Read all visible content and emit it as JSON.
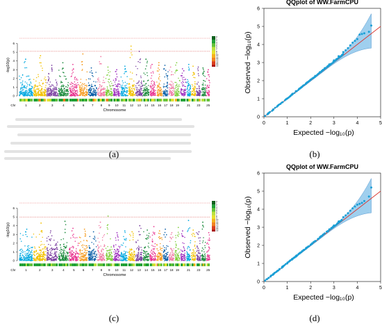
{
  "panel_labels": [
    "(a)",
    "(b)",
    "(c)",
    "(d)"
  ],
  "chart_data": [
    {
      "panel": "(a)",
      "type": "scatter",
      "subtype": "manhattan",
      "xlabel": "Chromosome",
      "ylabel": "-log10(p)",
      "y_tick_labels": [
        "0",
        "1",
        "2",
        "3",
        "4",
        "5",
        "6"
      ],
      "ylim": [
        0,
        7
      ],
      "x_axis_prefix": "Chr",
      "chromosomes": [
        "1",
        "2",
        "3",
        "4",
        "5",
        "6",
        "7",
        "8",
        "9",
        "10",
        "11",
        "12",
        "13",
        "14",
        "15",
        "16",
        "17",
        "18",
        "19",
        "20",
        "21",
        "22",
        "23",
        "24",
        "25"
      ],
      "chromosome_labels_shown": [
        "1",
        "2",
        "3",
        "4",
        "5",
        "6",
        "7",
        "8",
        "9",
        "10",
        "11",
        "12",
        "13",
        "14",
        "15",
        "16",
        "17",
        "18",
        "19",
        "21",
        "23",
        "25"
      ],
      "chromosome_colors": [
        "#00a8e0",
        "#f2c100",
        "#7a3ea0",
        "#1b8a3c",
        "#e8338f",
        "#f59a1e",
        "#0b5fa8",
        "#f07da6",
        "#7fcf3b",
        "#9e2fbf",
        "#00a8e0",
        "#f2c100",
        "#7a3ea0",
        "#1b8a3c",
        "#e8338f",
        "#f59a1e",
        "#0b5fa8",
        "#f07da6",
        "#7fcf3b",
        "#9e2fbf",
        "#00a8e0",
        "#f2c100",
        "#7a3ea0",
        "#1b8a3c",
        "#e8338f"
      ],
      "chromosome_widths": [
        1.6,
        1.5,
        1.3,
        1.2,
        1.1,
        1.0,
        1.0,
        0.9,
        0.8,
        0.8,
        0.8,
        0.8,
        0.8,
        0.7,
        0.7,
        0.7,
        0.6,
        0.6,
        0.6,
        0.6,
        0.5,
        0.5,
        0.5,
        0.5,
        0.4
      ],
      "chromosome_peak": [
        4.2,
        4.6,
        3.5,
        3.8,
        3.6,
        4.8,
        3.2,
        4.5,
        3.3,
        3.0,
        3.4,
        5.7,
        5.1,
        4.2,
        3.6,
        3.8,
        3.5,
        3.3,
        3.8,
        3.1,
        3.6,
        3.4,
        3.3,
        3.2,
        3.0
      ],
      "threshold_lines": [
        {
          "value": 5.1,
          "color": "#d9534f"
        },
        {
          "value": 6.6,
          "color": "#e97a7a"
        }
      ],
      "density_legend_tick_labels": [
        "0",
        "1",
        "2",
        "3",
        "4",
        "5",
        "6",
        "7",
        "8",
        "9",
        "10",
        "11",
        "12",
        "13",
        "14",
        "15",
        "16"
      ]
    },
    {
      "panel": "(b)",
      "type": "scatter",
      "subtype": "qq",
      "title": "QQplot of WW.FarmCPU",
      "xlabel": "Expected  −log₁₀(p)",
      "ylabel": "Observed  −log₁₀(p)",
      "xlim": [
        0,
        5
      ],
      "ylim": [
        0,
        6
      ],
      "x_ticks": [
        0,
        1,
        2,
        3,
        4,
        5
      ],
      "y_ticks": [
        0,
        1,
        2,
        3,
        4,
        5,
        6
      ],
      "point_color": "#1a9fd6",
      "band_color": "#7fbfe8",
      "line_color": "#d9322a",
      "x": [
        0.05,
        0.2,
        0.4,
        0.6,
        0.8,
        1.0,
        1.2,
        1.4,
        1.6,
        1.8,
        2.0,
        2.2,
        2.4,
        2.6,
        2.8,
        3.0,
        3.2,
        3.4,
        3.5,
        3.6,
        3.7,
        3.8,
        3.9,
        4.0,
        4.1,
        4.2,
        4.3,
        4.5,
        4.6
      ],
      "y": [
        0.05,
        0.2,
        0.4,
        0.61,
        0.81,
        1.01,
        1.22,
        1.42,
        1.63,
        1.84,
        2.05,
        2.26,
        2.47,
        2.68,
        2.9,
        3.12,
        3.35,
        3.58,
        3.68,
        3.8,
        3.95,
        4.1,
        4.2,
        4.3,
        4.55,
        4.58,
        4.62,
        4.7,
        5.05
      ]
    },
    {
      "panel": "(c)",
      "type": "scatter",
      "subtype": "manhattan",
      "xlabel": "Chromosome",
      "ylabel": "-log10(p)",
      "y_tick_labels": [
        "0",
        "1",
        "2",
        "3",
        "4",
        "5",
        "6"
      ],
      "ylim": [
        0,
        7
      ],
      "x_axis_prefix": "Chr",
      "chromosomes": [
        "1",
        "2",
        "3",
        "4",
        "5",
        "6",
        "7",
        "8",
        "9",
        "10",
        "11",
        "12",
        "13",
        "14",
        "15",
        "16",
        "17",
        "18",
        "19",
        "20",
        "21",
        "22",
        "23",
        "24",
        "25"
      ],
      "chromosome_labels_shown": [
        "1",
        "2",
        "3",
        "4",
        "5",
        "6",
        "7",
        "8",
        "9",
        "10",
        "11",
        "12",
        "13",
        "14",
        "15",
        "16",
        "17",
        "18",
        "19",
        "21",
        "23",
        "25"
      ],
      "chromosome_colors": [
        "#00a8e0",
        "#f2c100",
        "#7a3ea0",
        "#1b8a3c",
        "#e8338f",
        "#f59a1e",
        "#0b5fa8",
        "#f07da6",
        "#7fcf3b",
        "#9e2fbf",
        "#00a8e0",
        "#f2c100",
        "#7a3ea0",
        "#1b8a3c",
        "#e8338f",
        "#f59a1e",
        "#0b5fa8",
        "#f07da6",
        "#7fcf3b",
        "#9e2fbf",
        "#00a8e0",
        "#f2c100",
        "#7a3ea0",
        "#1b8a3c",
        "#e8338f"
      ],
      "chromosome_widths": [
        1.6,
        1.5,
        1.3,
        1.2,
        1.1,
        1.0,
        1.0,
        0.9,
        0.8,
        0.8,
        0.8,
        0.8,
        0.8,
        0.7,
        0.7,
        0.7,
        0.6,
        0.6,
        0.6,
        0.6,
        0.5,
        0.5,
        0.5,
        0.5,
        0.4
      ],
      "chromosome_peak": [
        3.6,
        4.3,
        3.4,
        4.5,
        3.7,
        3.6,
        3.3,
        4.4,
        5.1,
        3.2,
        3.4,
        3.3,
        4.0,
        3.5,
        3.9,
        3.4,
        3.6,
        3.2,
        3.8,
        3.4,
        4.6,
        3.5,
        3.3,
        4.4,
        3.2
      ],
      "threshold_lines": [
        {
          "value": 5.0,
          "color": "#d9534f"
        },
        {
          "value": 6.6,
          "color": "#e97a7a"
        }
      ],
      "density_legend_tick_labels": [
        "0",
        "1",
        "2",
        "3",
        "4",
        "5",
        "6",
        "7",
        "8",
        "9",
        "10",
        "11",
        "12",
        "13",
        "14",
        "15",
        "16"
      ]
    },
    {
      "panel": "(d)",
      "type": "scatter",
      "subtype": "qq",
      "title": "QQplot of WW.FarmCPU",
      "xlabel": "Expected  −log₁₀(p)",
      "ylabel": "Observed  −log₁₀(p)",
      "xlim": [
        0,
        5
      ],
      "ylim": [
        0,
        6
      ],
      "x_ticks": [
        0,
        1,
        2,
        3,
        4,
        5
      ],
      "y_ticks": [
        0,
        1,
        2,
        3,
        4,
        5,
        6
      ],
      "point_color": "#1a9fd6",
      "band_color": "#7fbfe8",
      "line_color": "#d9322a",
      "x": [
        0.05,
        0.2,
        0.4,
        0.6,
        0.8,
        1.0,
        1.2,
        1.4,
        1.6,
        1.8,
        2.0,
        2.2,
        2.4,
        2.6,
        2.8,
        3.0,
        3.2,
        3.4,
        3.5,
        3.6,
        3.7,
        3.8,
        3.9,
        4.0,
        4.1,
        4.2,
        4.3,
        4.5,
        4.6
      ],
      "y": [
        0.05,
        0.2,
        0.4,
        0.6,
        0.8,
        1.0,
        1.21,
        1.41,
        1.62,
        1.82,
        2.03,
        2.24,
        2.45,
        2.66,
        2.88,
        3.1,
        3.32,
        3.56,
        3.66,
        3.78,
        3.92,
        4.05,
        4.15,
        4.25,
        4.3,
        4.35,
        4.45,
        4.7,
        5.2
      ]
    }
  ]
}
